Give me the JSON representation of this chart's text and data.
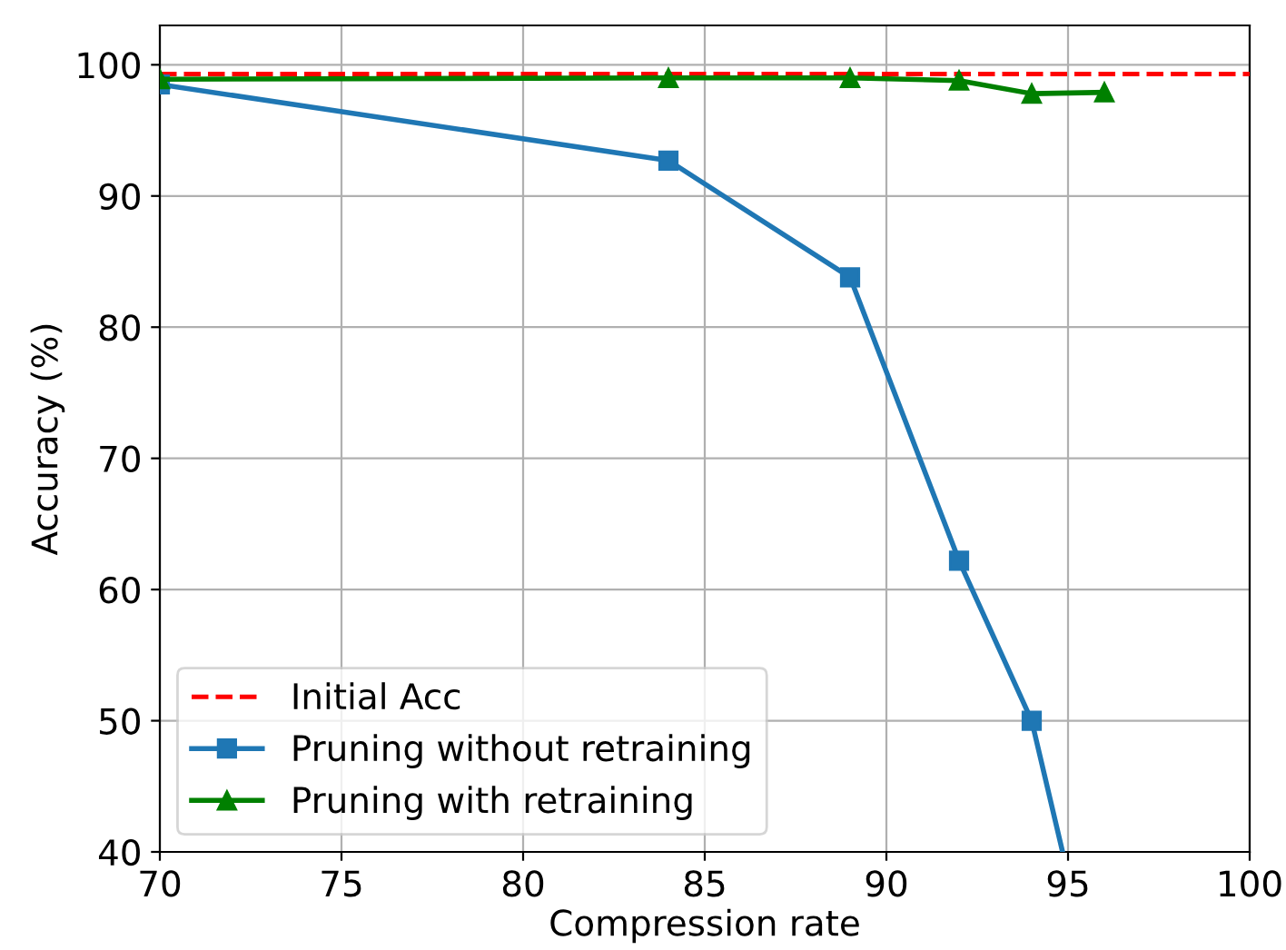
{
  "chart_data": {
    "type": "line",
    "xlabel": "Compression rate",
    "ylabel": "Accuracy (%)",
    "xlim": [
      70,
      100
    ],
    "xticks": [
      70,
      75,
      80,
      85,
      90,
      95,
      100
    ],
    "ylim": [
      40,
      103
    ],
    "yticks": [
      40,
      50,
      60,
      70,
      80,
      90,
      100
    ],
    "grid": true,
    "legend": "bottom left",
    "ref_lines": [
      {
        "axis": "y",
        "value": 99.3,
        "label": "Initial Acc",
        "color": "#ff0000",
        "line_style": "dashed"
      }
    ],
    "series": [
      {
        "name": "Pruning without retraining",
        "color": "#1f77b4",
        "marker": "square",
        "x": [
          70,
          84,
          89,
          92,
          94,
          94.85
        ],
        "values": [
          98.5,
          92.7,
          83.8,
          62.2,
          50.0,
          40.0
        ]
      },
      {
        "name": "Pruning with retraining",
        "color": "#008000",
        "marker": "triangle",
        "x": [
          70,
          84,
          89,
          92,
          94,
          96
        ],
        "values": [
          98.9,
          99.0,
          99.0,
          98.8,
          97.8,
          97.9
        ]
      }
    ]
  }
}
